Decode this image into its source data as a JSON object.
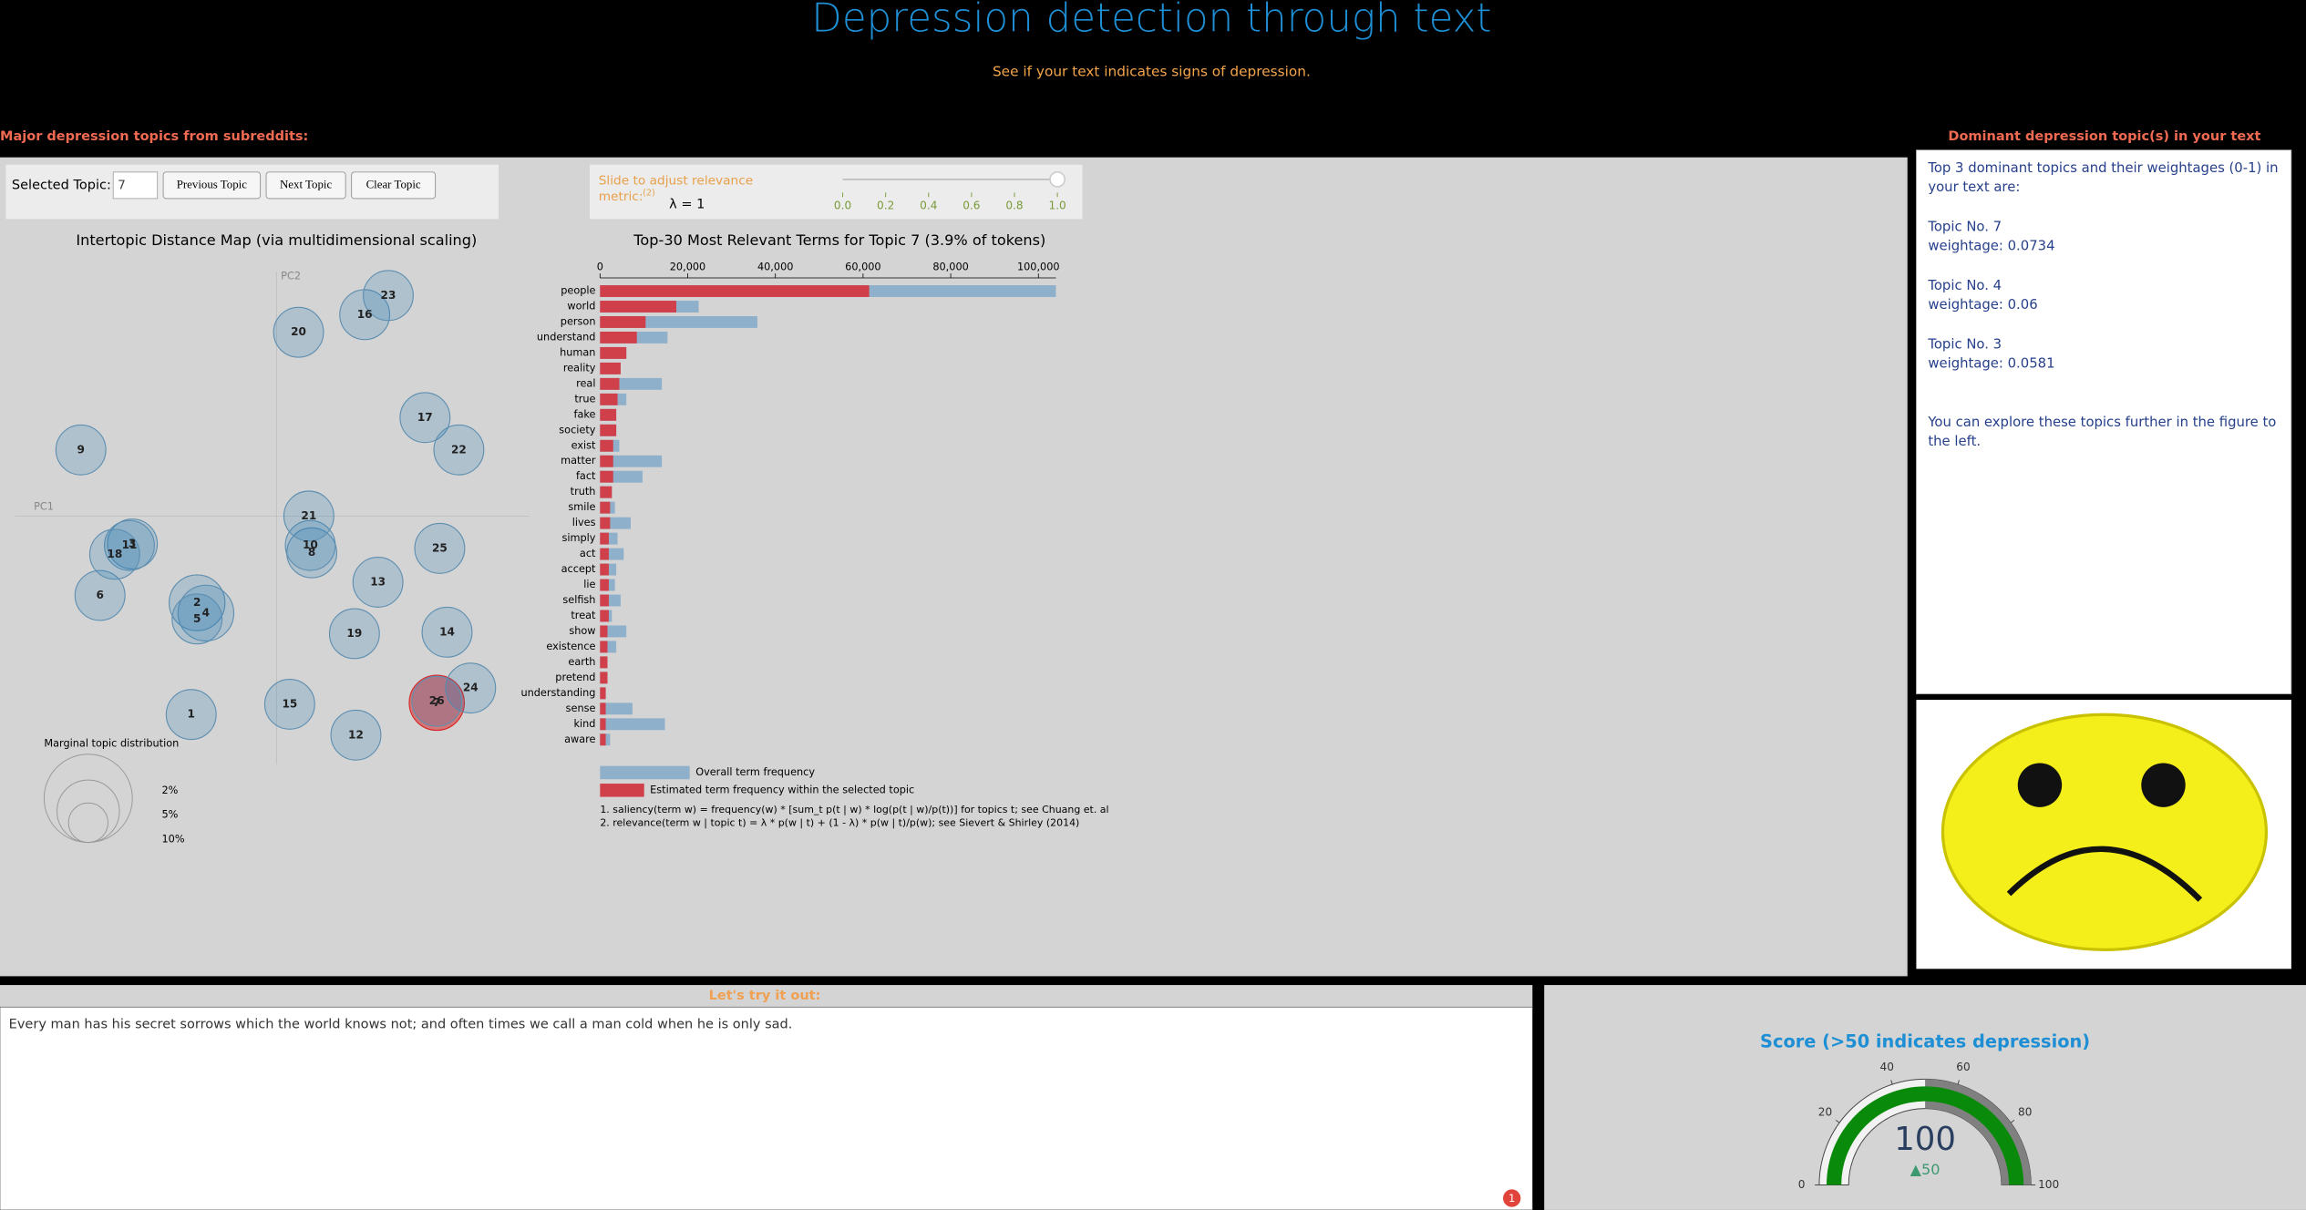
{
  "header": {
    "title": "Depression detection through text",
    "subtitle": "See if your text indicates signs of depression."
  },
  "left_heading": "Major depression topics from subreddits:",
  "right_heading": "Dominant depression topic(s) in your text",
  "ldavis": {
    "selected_topic_label": "Selected Topic:",
    "selected_topic": "7",
    "buttons": [
      "Previous Topic",
      "Next Topic",
      "Clear Topic"
    ],
    "slider": {
      "label_line1": "Slide to adjust relevance",
      "label_line2": "metric:",
      "footnote": "(2)",
      "lambda_label": "λ = 1",
      "ticks": [
        {
          "value": 0,
          "label": "0.0"
        },
        {
          "value": 0.2,
          "label": "0.2"
        },
        {
          "value": 0.4,
          "label": "0.4"
        },
        {
          "value": 0.6,
          "label": "0.6"
        },
        {
          "value": 0.8,
          "label": "0.8"
        },
        {
          "value": 1,
          "label": "1.0"
        }
      ],
      "value": 1,
      "range": [
        0,
        1
      ]
    }
  },
  "chart_data": [
    {
      "type": "scatter",
      "title": "Intertopic Distance Map (via multidimensional scaling)",
      "x_label": "PC1",
      "y_label": "PC2",
      "labels": [
        "1",
        "2",
        "3",
        "4",
        "5",
        "6",
        "7",
        "8",
        "9",
        "10",
        "11",
        "12",
        "13",
        "14",
        "15",
        "16",
        "17",
        "18",
        "19",
        "20",
        "21",
        "22",
        "23",
        "24",
        "25",
        "26"
      ],
      "x": [
        -0.116,
        -0.108,
        -0.196,
        -0.096,
        -0.108,
        -0.24,
        0.218,
        0.048,
        -0.266,
        0.046,
        -0.2,
        0.108,
        0.138,
        0.232,
        0.018,
        0.12,
        0.202,
        -0.22,
        0.106,
        0.03,
        0.044,
        0.248,
        0.152,
        0.264,
        0.222,
        0.218
      ],
      "y": [
        -0.27,
        -0.118,
        -0.038,
        -0.132,
        -0.14,
        -0.108,
        -0.254,
        -0.05,
        0.09,
        -0.04,
        -0.04,
        -0.298,
        -0.09,
        -0.158,
        -0.256,
        0.274,
        0.134,
        -0.052,
        -0.16,
        0.25,
        0,
        0.09,
        0.3,
        -0.234,
        -0.044,
        -0.252
      ],
      "sizes": [
        3.2,
        4.0,
        3.2,
        4.0,
        3.2,
        3.2,
        3.9,
        3.2,
        3.2,
        3.2,
        3.2,
        3.2,
        3.2,
        3.2,
        3.2,
        3.2,
        3.2,
        3.2,
        3.2,
        3.2,
        3.2,
        3.2,
        3.2,
        3.2,
        3.2,
        3.2
      ],
      "xlim": [
        -0.356,
        0.344
      ],
      "ylim": [
        -0.338,
        0.332
      ],
      "color": "#1f77b4",
      "selected_color": "#d62728",
      "size_legend": {
        "title": "Marginal topic distribution",
        "sizes": [
          {
            "value": 2,
            "label": "2%"
          },
          {
            "value": 5,
            "label": "5%"
          },
          {
            "value": 10,
            "label": "10%"
          }
        ]
      }
    },
    {
      "type": "bar",
      "orientation": "horizontal",
      "title": "Top-30 Most Relevant Terms for Topic 7 (3.9% of tokens)",
      "categories": [
        "people",
        "world",
        "person",
        "understand",
        "human",
        "reality",
        "real",
        "true",
        "fake",
        "society",
        "exist",
        "matter",
        "fact",
        "truth",
        "smile",
        "lives",
        "simply",
        "act",
        "accept",
        "lie",
        "selfish",
        "treat",
        "show",
        "existence",
        "earth",
        "pretend",
        "understanding",
        "sense",
        "kind",
        "aware"
      ],
      "series": [
        {
          "name": "Overall term frequency",
          "color": "#8fb0cb",
          "values": [
            104000,
            22500,
            35900,
            15400,
            6000,
            4700,
            14100,
            6000,
            3700,
            3700,
            4400,
            14100,
            9700,
            2700,
            3400,
            7000,
            4000,
            5400,
            3700,
            3400,
            4700,
            2700,
            6000,
            3700,
            1700,
            1700,
            1300,
            7400,
            14800,
            2300
          ]
        },
        {
          "name": "Estimated term frequency within the selected topic",
          "color": "#d0404a",
          "values": [
            61400,
            17400,
            10400,
            8400,
            6000,
            4700,
            4400,
            4000,
            3700,
            3700,
            3000,
            3000,
            3000,
            2700,
            2300,
            2300,
            2000,
            2000,
            2000,
            2000,
            2000,
            2000,
            1700,
            1700,
            1700,
            1700,
            1300,
            1300,
            1300,
            1300
          ]
        }
      ],
      "xlim": [
        0,
        104000
      ],
      "xticks": [
        0,
        {
          "value": 20000,
          "label": "20,000"
        },
        {
          "value": 40000,
          "label": "40,000"
        },
        {
          "value": 60000,
          "label": "60,000"
        },
        {
          "value": 80000,
          "label": "80,000"
        },
        {
          "value": 100000,
          "label": "100,000"
        }
      ],
      "notes": [
        "1. saliency(term w) = frequency(w) * [sum_t p(t | w) * log(p(t | w)/p(t))] for topics t; see Chuang et. al",
        "2. relevance(term w | topic t) = λ * p(w | t) + (1 - λ) * p(w | t)/p(w); see Sievert & Shirley (2014)"
      ]
    },
    {
      "type": "gauge",
      "title": "Score (>50 indicates depression)",
      "value": 100,
      "delta": {
        "value": 50,
        "label": "▲50"
      },
      "range": [
        0,
        100
      ],
      "ticks": [
        0,
        20,
        40,
        60,
        80,
        100
      ],
      "bar_color": "#0a8a0a",
      "steps": [
        {
          "range": [
            50,
            100
          ],
          "color": "#808080"
        }
      ]
    }
  ],
  "dominant_topics": {
    "intro": "Top 3 dominant topics and their weightages (0-1) in your text are:",
    "topics": [
      {
        "name": "Topic No. 7",
        "weightage": "weightage: 0.0734"
      },
      {
        "name": "Topic No. 4",
        "weightage": "weightage: 0.06"
      },
      {
        "name": "Topic No. 3",
        "weightage": "weightage: 0.0581"
      }
    ],
    "outro": "You can explore these topics further in the figure to the left."
  },
  "try_it": {
    "heading": "Let's try it out:",
    "text": "Every man has his secret sorrows which the world knows not; and often times we call a man cold when he is only sad.",
    "badge": "1"
  }
}
